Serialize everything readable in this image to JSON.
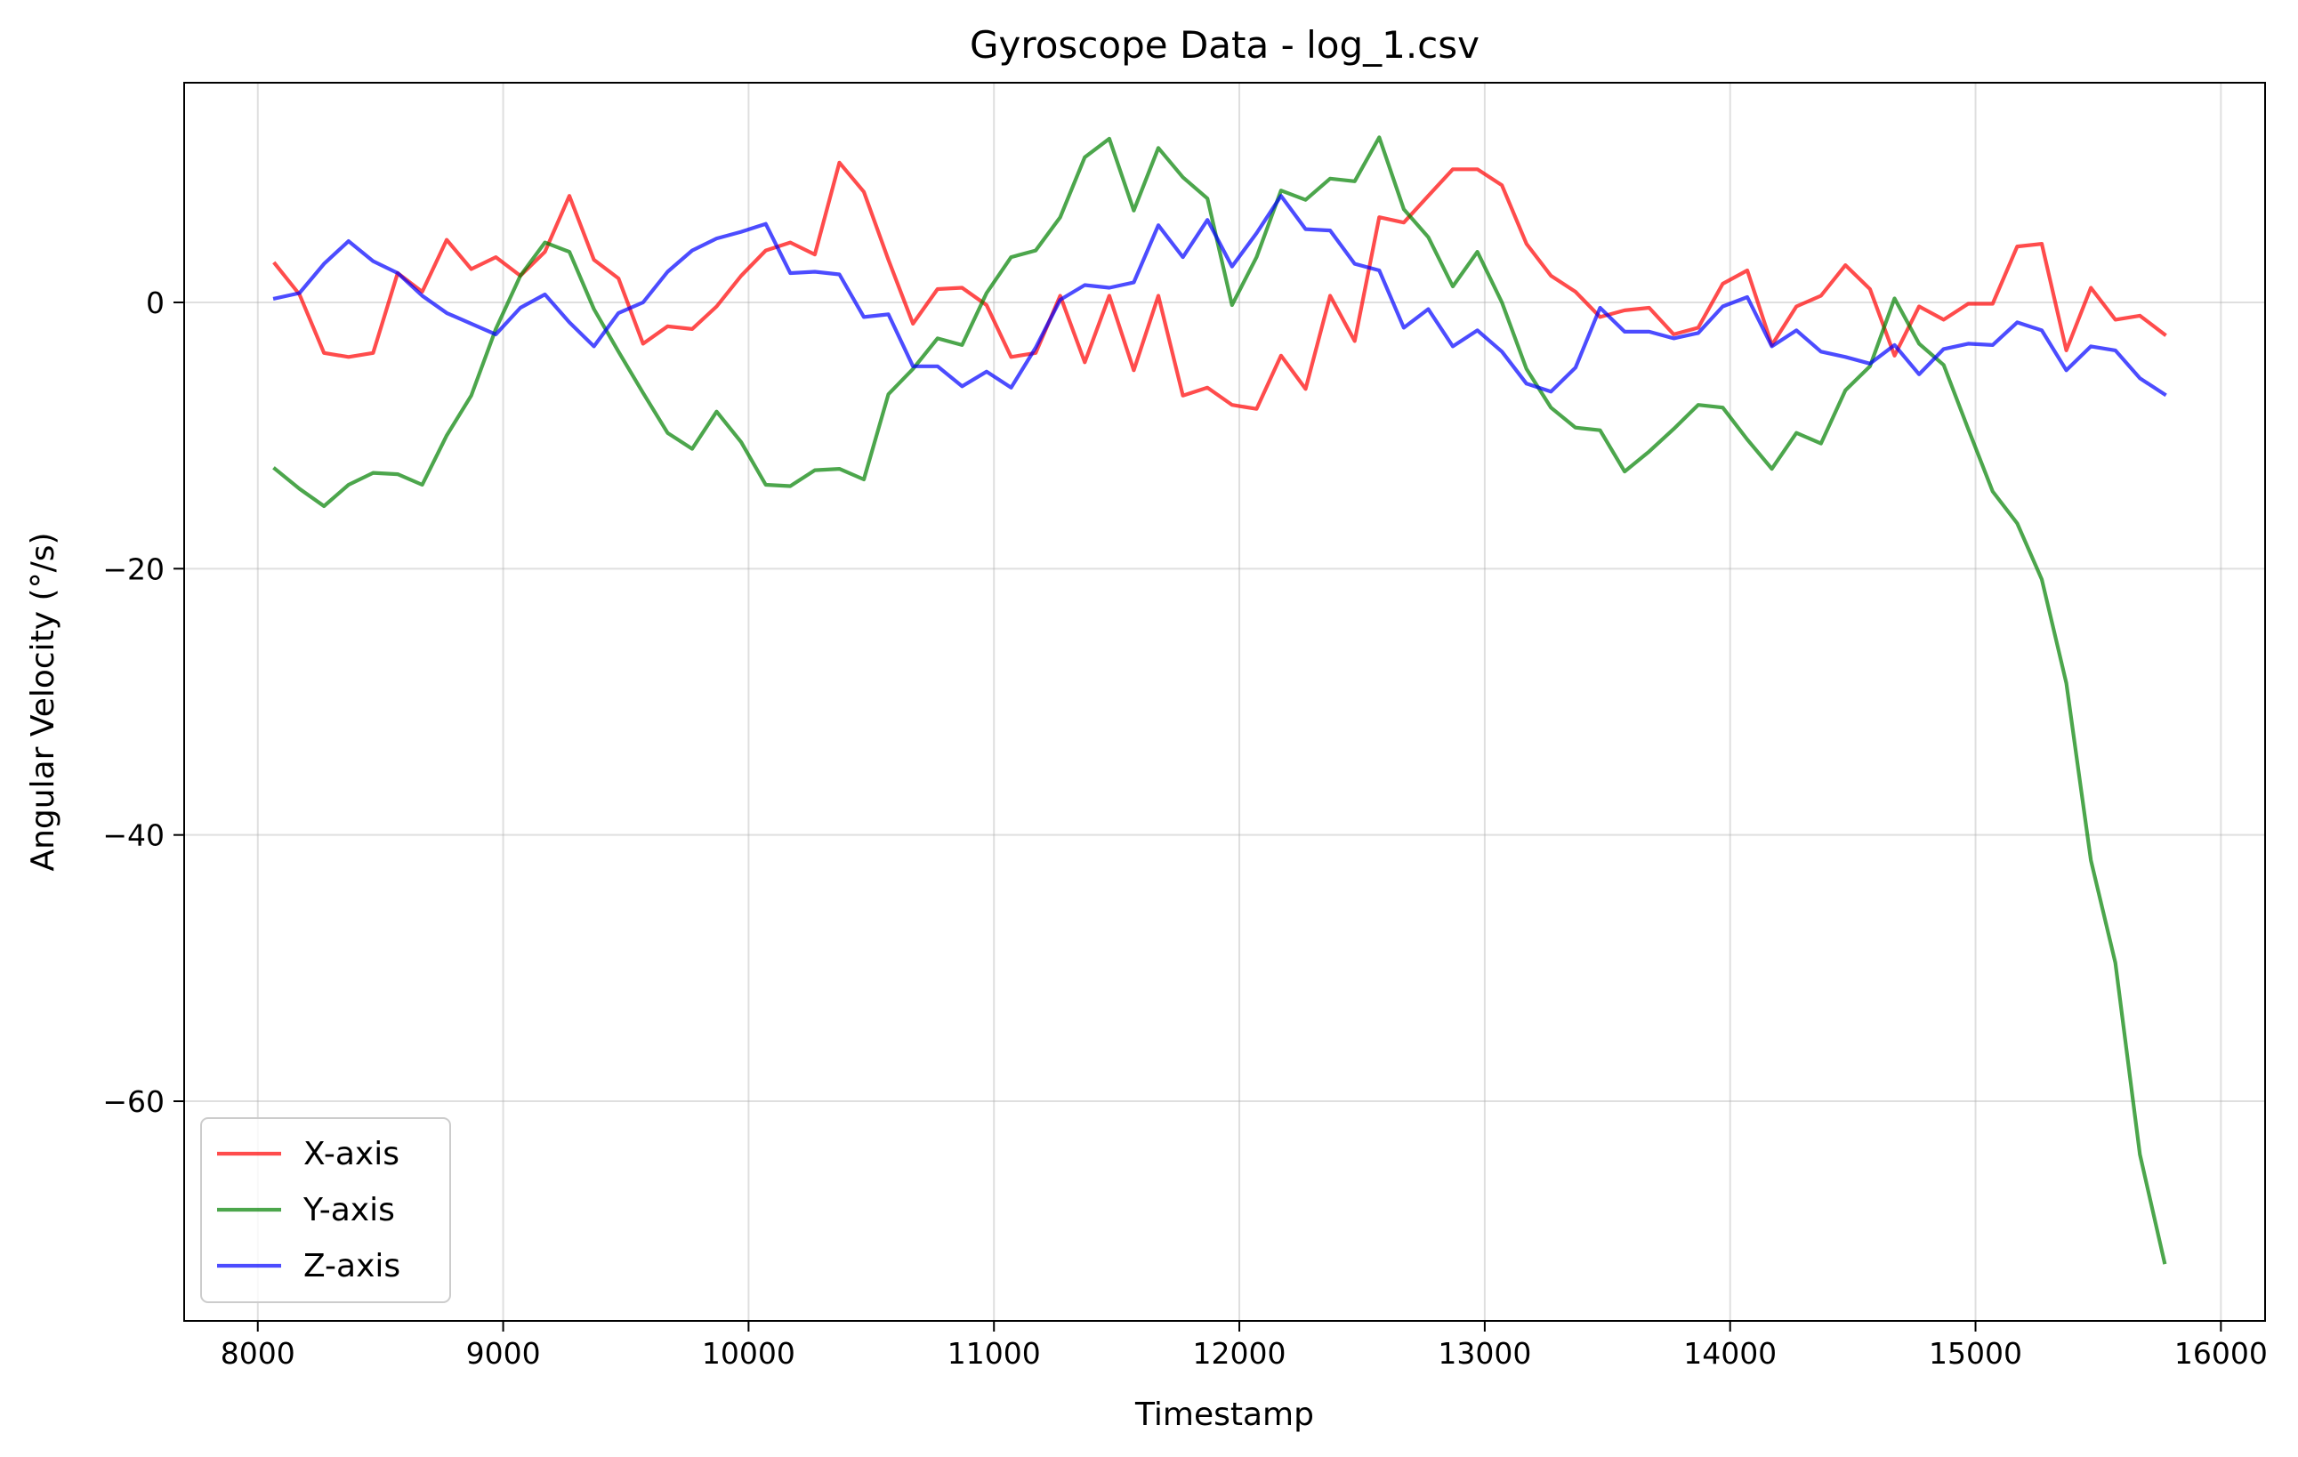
{
  "chart_data": {
    "type": "line",
    "title": "Gyroscope Data - log_1.csv",
    "xlabel": "Timestamp",
    "ylabel": "Angular Velocity (°/s)",
    "xlim": [
      7700,
      16180
    ],
    "ylim": [
      -76.5,
      16.5
    ],
    "xticks": [
      8000,
      9000,
      10000,
      11000,
      12000,
      13000,
      14000,
      15000,
      16000
    ],
    "xtick_labels": [
      "8000",
      "9000",
      "10000",
      "11000",
      "12000",
      "13000",
      "14000",
      "15000",
      "16000"
    ],
    "yticks": [
      0,
      -20,
      -40,
      -60
    ],
    "ytick_labels": [
      "0",
      "−20",
      "−40",
      "−60"
    ],
    "grid": true,
    "legend_position": "lower-left",
    "x": [
      8070,
      8170,
      8270,
      8370,
      8470,
      8570,
      8670,
      8770,
      8870,
      8970,
      9070,
      9170,
      9270,
      9370,
      9470,
      9570,
      9670,
      9770,
      9870,
      9970,
      10070,
      10170,
      10270,
      10370,
      10470,
      10570,
      10670,
      10770,
      10870,
      10970,
      11070,
      11170,
      11270,
      11370,
      11470,
      11570,
      11670,
      11770,
      11870,
      11970,
      12070,
      12170,
      12270,
      12370,
      12470,
      12570,
      12670,
      12770,
      12870,
      12970,
      13070,
      13170,
      13270,
      13370,
      13470,
      13570,
      13670,
      13770,
      13870,
      13970,
      14070,
      14170,
      14270,
      14370,
      14470,
      14570,
      14670,
      14770,
      14870,
      14970,
      15070,
      15170,
      15270,
      15370,
      15470,
      15570,
      15670,
      15770
    ],
    "series": [
      {
        "name": "X-axis",
        "color": "#ff0000",
        "values": [
          2.9,
          0.6,
          -3.8,
          -4.1,
          -3.8,
          2.2,
          0.8,
          4.7,
          2.5,
          3.4,
          2.0,
          3.8,
          8.0,
          3.2,
          1.8,
          -3.1,
          -1.8,
          -2.0,
          -0.3,
          2.0,
          3.9,
          4.5,
          3.6,
          10.5,
          8.3,
          3.2,
          -1.6,
          1.0,
          1.1,
          -0.2,
          -4.1,
          -3.8,
          0.5,
          -4.5,
          0.5,
          -5.1,
          0.5,
          -7.0,
          -6.4,
          -7.7,
          -8.0,
          -4.0,
          -6.5,
          0.5,
          -2.9,
          6.4,
          6.0,
          8.0,
          10.0,
          10.0,
          8.8,
          4.4,
          2.0,
          0.8,
          -1.1,
          -0.6,
          -0.4,
          -2.4,
          -1.9,
          1.4,
          2.4,
          -3.2,
          -0.3,
          0.5,
          2.8,
          1.0,
          -4.0,
          -0.3,
          -1.3,
          -0.1,
          -0.1,
          4.2,
          4.4,
          -3.6,
          1.1,
          -1.3,
          -1.0,
          -2.4
        ]
      },
      {
        "name": "Y-axis",
        "color": "#008000",
        "values": [
          -12.5,
          -14.0,
          -15.3,
          -13.7,
          -12.8,
          -12.9,
          -13.7,
          -10.0,
          -7.0,
          -2.0,
          2.0,
          4.5,
          3.8,
          -0.5,
          -3.7,
          -6.8,
          -9.8,
          -11.0,
          -8.2,
          -10.5,
          -13.7,
          -13.8,
          -12.6,
          -12.5,
          -13.3,
          -6.9,
          -5.0,
          -2.7,
          -3.2,
          0.7,
          3.4,
          3.9,
          6.4,
          10.9,
          12.3,
          6.9,
          11.6,
          9.4,
          7.8,
          -0.2,
          3.4,
          8.4,
          7.7,
          9.3,
          9.1,
          12.4,
          7.0,
          4.9,
          1.2,
          3.8,
          0.0,
          -5.0,
          -7.9,
          -9.4,
          -9.6,
          -12.7,
          -11.2,
          -9.5,
          -7.7,
          -7.9,
          -10.3,
          -12.5,
          -9.8,
          -10.6,
          -6.6,
          -4.8,
          0.3,
          -3.1,
          -4.7,
          -9.5,
          -14.2,
          -16.6,
          -20.8,
          -28.6,
          -41.9,
          -49.6,
          -64.0,
          -72.1
        ]
      },
      {
        "name": "Z-axis",
        "color": "#0000ff",
        "values": [
          0.3,
          0.7,
          2.9,
          4.6,
          3.1,
          2.2,
          0.5,
          -0.8,
          -1.6,
          -2.4,
          -0.4,
          0.6,
          -1.5,
          -3.3,
          -0.8,
          0.0,
          2.3,
          3.9,
          4.8,
          5.3,
          5.9,
          2.2,
          2.3,
          2.1,
          -1.1,
          -0.9,
          -4.8,
          -4.8,
          -6.3,
          -5.2,
          -6.4,
          -3.4,
          0.2,
          1.3,
          1.1,
          1.5,
          5.8,
          3.4,
          6.2,
          2.7,
          5.2,
          8.0,
          5.5,
          5.4,
          2.9,
          2.4,
          -1.9,
          -0.5,
          -3.3,
          -2.1,
          -3.7,
          -6.1,
          -6.7,
          -4.9,
          -0.4,
          -2.2,
          -2.2,
          -2.7,
          -2.3,
          -0.3,
          0.4,
          -3.3,
          -2.1,
          -3.7,
          -4.1,
          -4.6,
          -3.2,
          -5.4,
          -3.5,
          -3.1,
          -3.2,
          -1.5,
          -2.1,
          -5.1,
          -3.3,
          -3.6,
          -5.7,
          -6.9
        ]
      }
    ]
  }
}
